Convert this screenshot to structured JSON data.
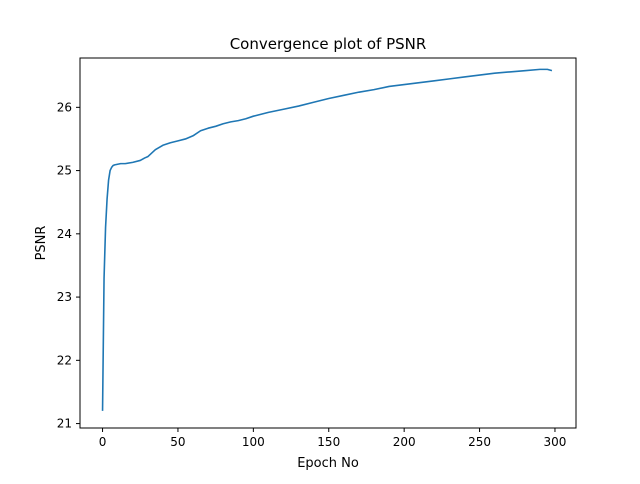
{
  "chart_data": {
    "type": "line",
    "title": "Convergence plot of PSNR",
    "xlabel": "Epoch No",
    "ylabel": "PSNR",
    "xlim": [
      -14.95,
      313.95
    ],
    "ylim": [
      20.93,
      26.78
    ],
    "xticks": [
      0,
      50,
      100,
      150,
      200,
      250,
      300
    ],
    "yticks": [
      21,
      22,
      23,
      24,
      25,
      26
    ],
    "grid": false,
    "legend": false,
    "line_color": "#1f77b4",
    "series": [
      {
        "x": [
          0,
          1,
          2,
          3,
          4,
          5,
          6,
          7,
          8,
          10,
          12,
          15,
          20,
          25,
          28,
          30,
          35,
          40,
          45,
          50,
          55,
          60,
          65,
          70,
          75,
          80,
          85,
          90,
          95,
          100,
          110,
          120,
          130,
          140,
          150,
          160,
          170,
          180,
          190,
          200,
          210,
          220,
          230,
          240,
          250,
          260,
          270,
          280,
          290,
          295,
          298
        ],
        "y": [
          21.2,
          23.3,
          24.1,
          24.55,
          24.85,
          25.0,
          25.05,
          25.08,
          25.09,
          25.1,
          25.11,
          25.11,
          25.13,
          25.16,
          25.2,
          25.22,
          25.33,
          25.4,
          25.44,
          25.47,
          25.5,
          25.55,
          25.63,
          25.67,
          25.7,
          25.74,
          25.77,
          25.79,
          25.82,
          25.86,
          25.92,
          25.97,
          26.02,
          26.08,
          26.14,
          26.19,
          26.24,
          26.28,
          26.33,
          26.36,
          26.39,
          26.42,
          26.45,
          26.48,
          26.51,
          26.54,
          26.56,
          26.58,
          26.6,
          26.6,
          26.58
        ]
      }
    ]
  }
}
